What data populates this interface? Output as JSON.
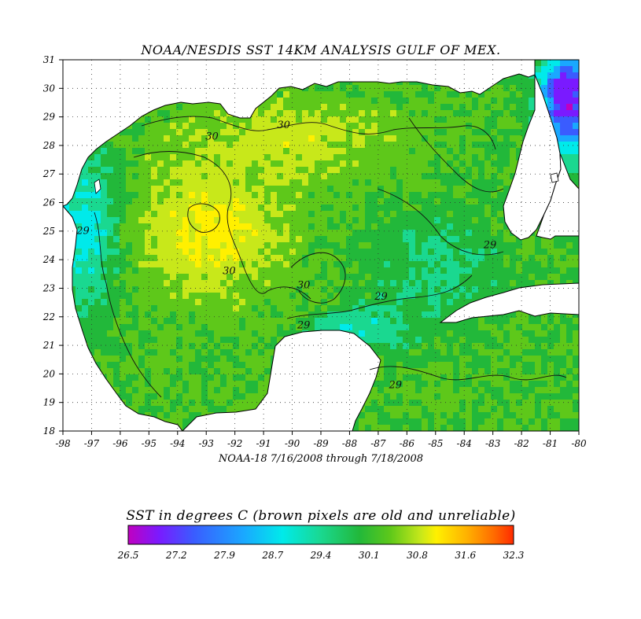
{
  "title": "NOAA/NESDIS SST 14KM ANALYSIS GULF OF MEX.",
  "subtitle": "NOAA-18  7/16/2008 through 7/18/2008",
  "colorbar": {
    "title": "SST in degrees C (brown pixels are old and unreliable)",
    "labels": [
      "26.5",
      "27.2",
      "27.9",
      "28.7",
      "29.4",
      "30.1",
      "30.8",
      "31.6",
      "32.3"
    ],
    "colors": [
      "#c000c0",
      "#7a1aff",
      "#3a5cff",
      "#1aa8ff",
      "#00eaea",
      "#1ad890",
      "#22b83a",
      "#5ec81a",
      "#c8e81a",
      "#fff000",
      "#ffb000",
      "#ff6a00",
      "#ff2a00"
    ]
  },
  "map": {
    "x_ticks": [
      "-98",
      "-97",
      "-96",
      "-95",
      "-94",
      "-93",
      "-92",
      "-91",
      "-90",
      "-89",
      "-88",
      "-87",
      "-86",
      "-85",
      "-84",
      "-83",
      "-82",
      "-81",
      "-80"
    ],
    "y_ticks": [
      "31",
      "30",
      "29",
      "28",
      "27",
      "26",
      "25",
      "24",
      "23",
      "22",
      "21",
      "20",
      "19",
      "18"
    ],
    "lon_range": [
      -98,
      -80
    ],
    "lat_range": [
      18,
      31
    ],
    "grid": true,
    "land_color": "#ffffff",
    "old_pixel_color": "#a0602a",
    "contour_labels": [
      {
        "text": "30",
        "lon": -92.8,
        "lat": 28.2
      },
      {
        "text": "30",
        "lon": -90.3,
        "lat": 28.6
      },
      {
        "text": "29",
        "lon": -97.3,
        "lat": 24.9
      },
      {
        "text": "30",
        "lon": -92.2,
        "lat": 23.5
      },
      {
        "text": "30",
        "lon": -89.6,
        "lat": 23.0
      },
      {
        "text": "29",
        "lon": -86.9,
        "lat": 22.6
      },
      {
        "text": "29",
        "lon": -89.6,
        "lat": 21.6
      },
      {
        "text": "29",
        "lon": -83.1,
        "lat": 24.4
      },
      {
        "text": "29",
        "lon": -86.4,
        "lat": 19.5
      }
    ]
  }
}
